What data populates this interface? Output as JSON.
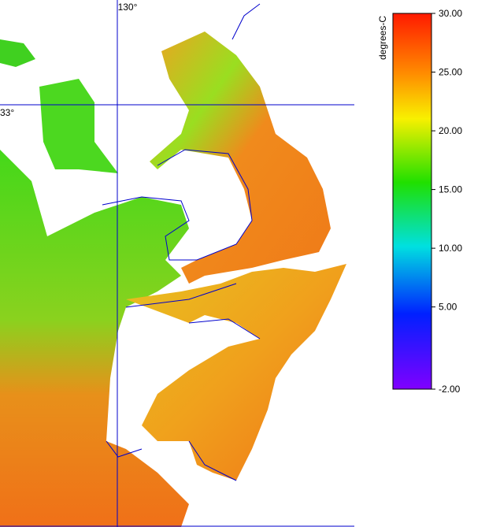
{
  "map": {
    "grid_labels": {
      "longitude": "130°",
      "latitude": "33°"
    },
    "colorbar": {
      "label": "degrees-C",
      "lim": [
        -2,
        30
      ],
      "ticks": [
        {
          "value": 30,
          "label": "30.00"
        },
        {
          "value": 25,
          "label": "25.00"
        },
        {
          "value": 20,
          "label": "20.00"
        },
        {
          "value": 15,
          "label": "15.00"
        },
        {
          "value": 10,
          "label": "10.00"
        },
        {
          "value": 5,
          "label": "5.00"
        },
        {
          "value": -2,
          "label": "-2.00"
        }
      ]
    }
  }
}
